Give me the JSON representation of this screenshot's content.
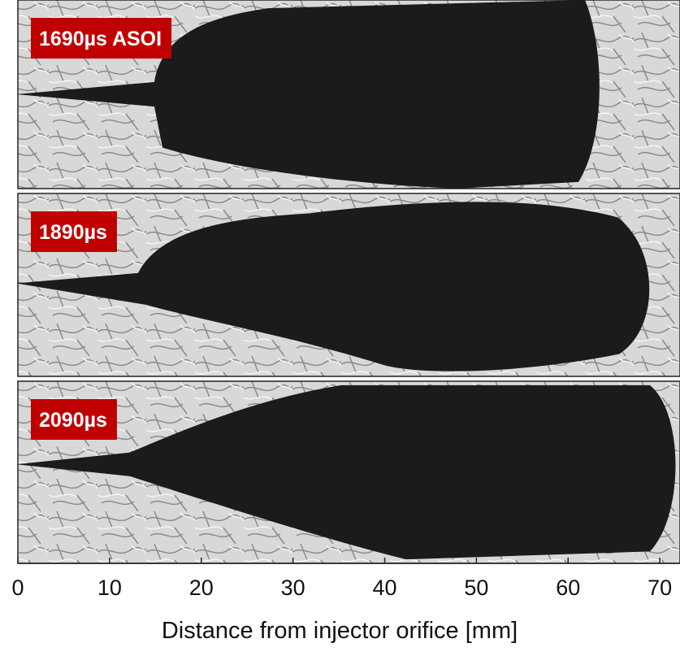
{
  "chart_data": {
    "type": "image-strip",
    "panels": [
      {
        "label": "1690µs ASOI"
      },
      {
        "label": "1890µs"
      },
      {
        "label": "2090µs"
      }
    ],
    "xlabel": "Distance from injector orifice [mm]",
    "xlim": [
      0,
      72.2
    ],
    "xticks": [
      0,
      10,
      20,
      30,
      40,
      50,
      60,
      70
    ]
  }
}
